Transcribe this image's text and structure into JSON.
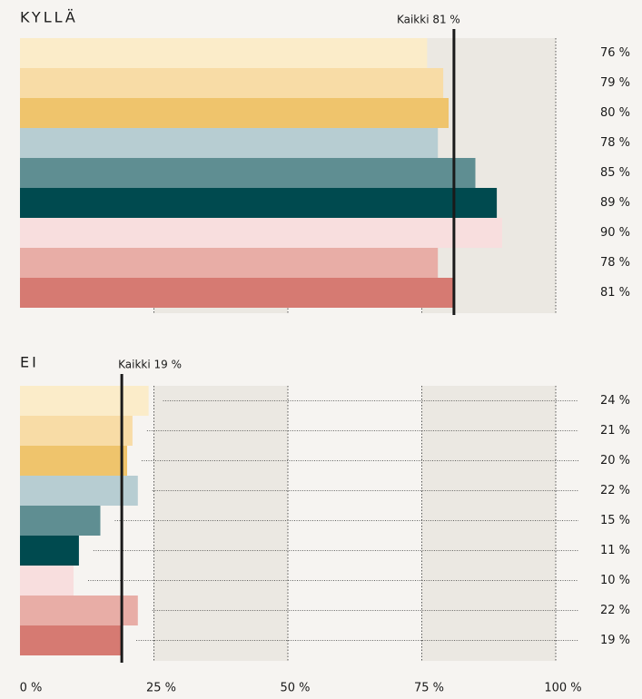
{
  "chart_data": {
    "type": "bar",
    "xlim": [
      0,
      100
    ],
    "xticks": [
      {
        "value": 0,
        "label": "0 %"
      },
      {
        "value": 25,
        "label": "25 %"
      },
      {
        "value": 50,
        "label": "50 %"
      },
      {
        "value": 75,
        "label": "75 %"
      },
      {
        "value": 100,
        "label": "100 %"
      }
    ],
    "colors": [
      "#fbecc9",
      "#f8dca6",
      "#efc46c",
      "#b7cdd2",
      "#5f8e92",
      "#004a4f",
      "#f8dede",
      "#e8ada6",
      "#d67a72"
    ],
    "panels": [
      {
        "title": "KYLLÄ",
        "values": [
          76,
          79,
          80,
          78,
          85,
          89,
          90,
          78,
          81
        ],
        "value_labels": [
          "76 %",
          "79 %",
          "80 %",
          "78 %",
          "85 %",
          "89 %",
          "90 %",
          "78 %",
          "81 %"
        ],
        "reference": {
          "value": 81,
          "label": "Kaikki 81 %"
        }
      },
      {
        "title": "EI",
        "values": [
          24,
          21,
          20,
          22,
          15,
          11,
          10,
          22,
          19
        ],
        "value_labels": [
          "24 %",
          "21 %",
          "20 %",
          "22 %",
          "15 %",
          "11 %",
          "10 %",
          "22 %",
          "19 %"
        ],
        "reference": {
          "value": 19,
          "label": "Kaikki 19 %"
        }
      }
    ]
  }
}
